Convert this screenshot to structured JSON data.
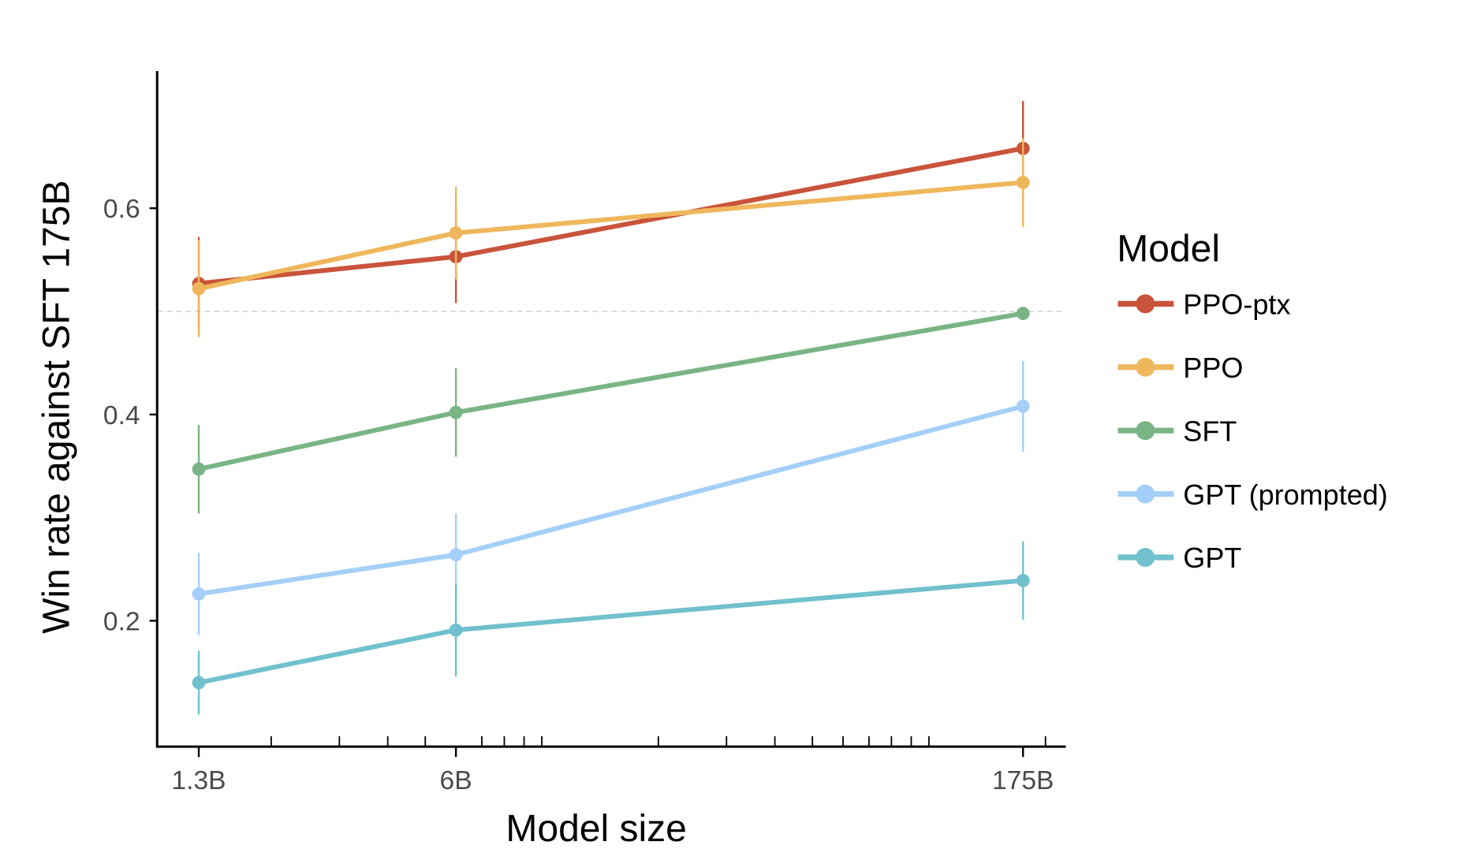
{
  "chart_data": {
    "type": "line",
    "title": "",
    "xlabel": "Model size",
    "ylabel": "Win rate against SFT 175B",
    "x_scale": "log",
    "x": [
      1300000000.0,
      6000000000.0,
      175000000000.0
    ],
    "x_tick_labels": [
      "1.3B",
      "6B",
      "175B"
    ],
    "minor_ticks": [
      2000000000.0,
      3000000000.0,
      4000000000.0,
      5000000000.0,
      7000000000.0,
      8000000000.0,
      9000000000.0,
      10000000000.0,
      20000000000.0,
      30000000000.0,
      40000000000.0,
      50000000000.0,
      60000000000.0,
      70000000000.0,
      80000000000.0,
      90000000000.0,
      100000000000.0,
      200000000000.0
    ],
    "y_ticks": [
      0.2,
      0.4,
      0.6
    ],
    "y_tick_labels": [
      "0.2",
      "0.4",
      "0.6"
    ],
    "ylim": [
      0.078,
      0.733
    ],
    "xlim": [
      1030000000.0,
      230000000000.0
    ],
    "reference_line": {
      "y": 0.5,
      "style": "dashed"
    },
    "grid": false,
    "legend": {
      "title": "Model",
      "placement": "right"
    },
    "series": [
      {
        "name": "PPO-ptx",
        "color": "#c9533b",
        "values": [
          0.527,
          0.553,
          0.658
        ],
        "errors": [
          0.045,
          0.045,
          0.046
        ]
      },
      {
        "name": "PPO",
        "color": "#efb75c",
        "values": [
          0.522,
          0.576,
          0.625
        ],
        "errors": [
          0.047,
          0.045,
          0.043
        ]
      },
      {
        "name": "SFT",
        "color": "#79b584",
        "values": [
          0.347,
          0.402,
          0.498
        ],
        "errors": [
          0.043,
          0.043,
          0.0
        ]
      },
      {
        "name": "GPT (prompted)",
        "color": "#a4cff8",
        "values": [
          0.226,
          0.264,
          0.408
        ],
        "errors": [
          0.04,
          0.04,
          0.044
        ]
      },
      {
        "name": "GPT",
        "color": "#70c1cd",
        "values": [
          0.14,
          0.191,
          0.239
        ],
        "errors": [
          0.031,
          0.045,
          0.038
        ]
      }
    ]
  }
}
